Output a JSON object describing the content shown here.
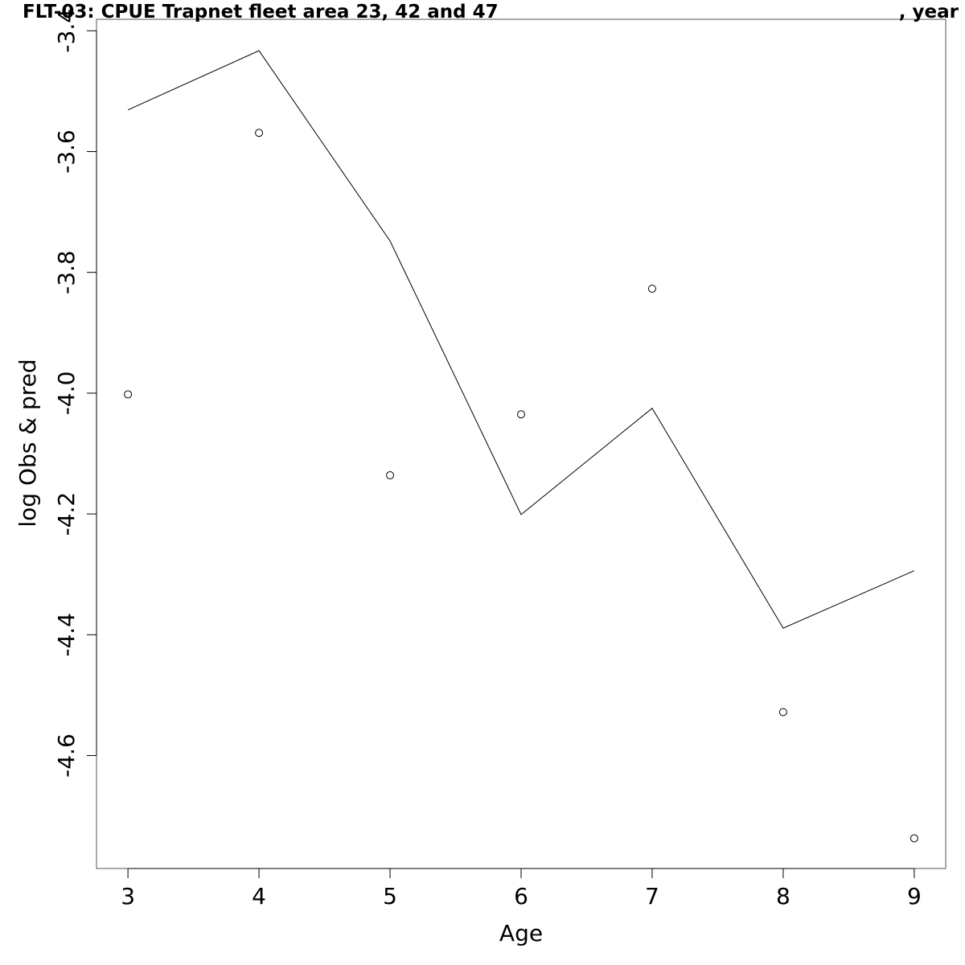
{
  "chart_data": {
    "type": "line",
    "title_left": "FLT-03: CPUE Trapnet fleet area 23, 42 and 47",
    "title_right": ", year",
    "xlabel": "Age",
    "ylabel": "log Obs & pred",
    "x": [
      3,
      4,
      5,
      6,
      7,
      8,
      9
    ],
    "xlim": [
      2.76,
      9.24
    ],
    "ylim": [
      -4.787,
      -3.381
    ],
    "x_ticks": [
      3,
      4,
      5,
      6,
      7,
      8,
      9
    ],
    "y_ticks": [
      -3.4,
      -3.6,
      -3.8,
      -4.0,
      -4.2,
      -4.4,
      -4.6
    ],
    "y_tick_labels": [
      "-3.4",
      "-3.6",
      "-3.8",
      "-4.0",
      "-4.2",
      "-4.4",
      "-4.6"
    ],
    "grid": false,
    "series": [
      {
        "style": "points",
        "marker": "open-circle",
        "values": [
          -4.002,
          -3.569,
          -4.136,
          -4.035,
          -3.827,
          -4.528,
          -4.737
        ]
      },
      {
        "style": "line",
        "values": [
          -3.531,
          -3.433,
          -3.748,
          -4.201,
          -4.025,
          -4.389,
          -4.294
        ]
      }
    ],
    "colors": {
      "line": "#000000",
      "points": "#000000",
      "axis": "#000000",
      "box": "#555555"
    }
  }
}
